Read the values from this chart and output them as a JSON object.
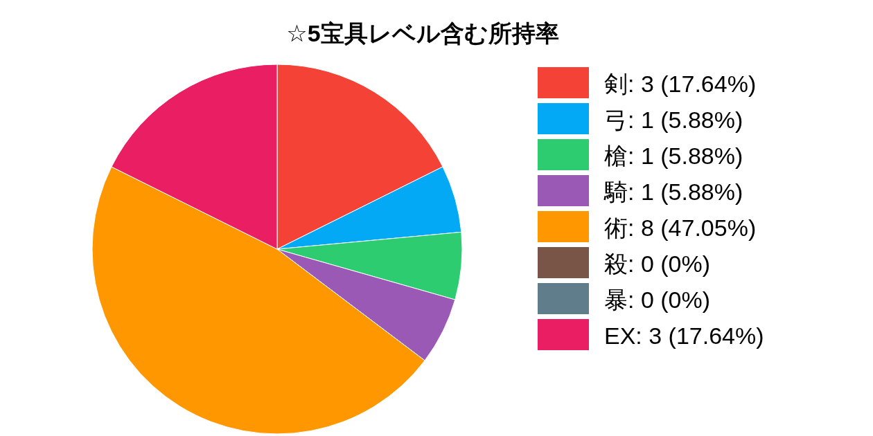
{
  "chart_data": {
    "type": "pie",
    "title": "☆5宝具レベル含む所持率",
    "categories": [
      "剣: 3 (17.64%)",
      "弓: 1 (5.88%)",
      "槍: 1 (5.88%)",
      "騎: 1 (5.88%)",
      "術: 8 (47.05%)",
      "殺: 0 (0%)",
      "暴: 0 (0%)",
      "EX: 3 (17.64%)"
    ],
    "values": [
      3,
      1,
      1,
      1,
      8,
      0,
      0,
      3
    ],
    "colors": [
      "#f44336",
      "#03a9f4",
      "#2ecc71",
      "#9b59b6",
      "#ff9800",
      "#795548",
      "#607d8b",
      "#e91e63"
    ],
    "legend": "right"
  }
}
